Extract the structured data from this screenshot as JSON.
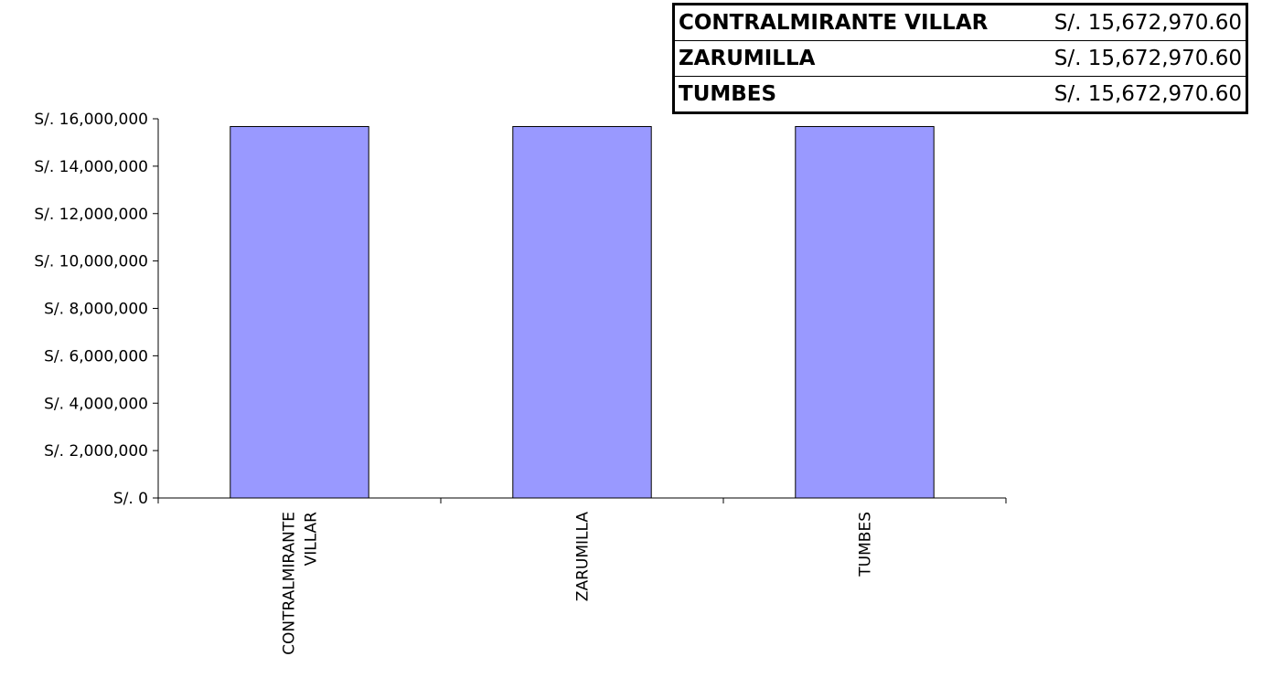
{
  "chart_data": {
    "type": "bar",
    "categories": [
      "CONTRALMIRANTE VILLAR",
      "ZARUMILLA",
      "TUMBES"
    ],
    "category_label_lines": [
      [
        "CONTRALMIRANTE",
        "VILLAR"
      ],
      [
        "ZARUMILLA"
      ],
      [
        "TUMBES"
      ]
    ],
    "values": [
      15672970.6,
      15672970.6,
      15672970.6
    ],
    "ylim": [
      0,
      16000000
    ],
    "yticks": [
      0,
      2000000,
      4000000,
      6000000,
      8000000,
      10000000,
      12000000,
      14000000,
      16000000
    ],
    "ytick_labels": [
      "S/. 0",
      "S/. 2,000,000",
      "S/. 4,000,000",
      "S/. 6,000,000",
      "S/. 8,000,000",
      "S/. 10,000,000",
      "S/. 12,000,000",
      "S/. 14,000,000",
      "S/. 16,000,000"
    ],
    "title": "",
    "xlabel": "",
    "ylabel": "",
    "grid": false,
    "bar_color": "#9999ff"
  },
  "data_table": {
    "rows": [
      {
        "name": "CONTRALMIRANTE VILLAR",
        "value": "S/. 15,672,970.60"
      },
      {
        "name": "ZARUMILLA",
        "value": "S/. 15,672,970.60"
      },
      {
        "name": "TUMBES",
        "value": "S/. 15,672,970.60"
      }
    ]
  }
}
